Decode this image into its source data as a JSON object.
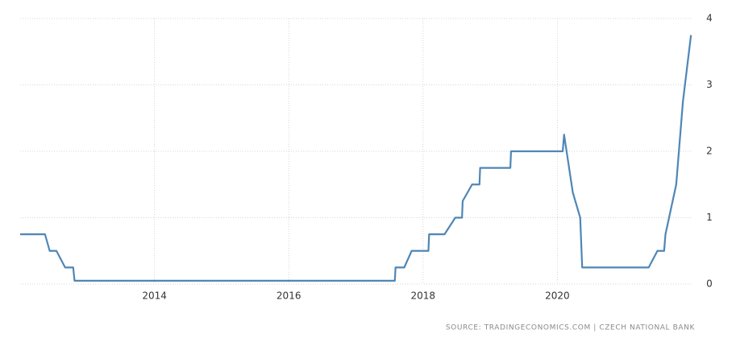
{
  "chart_data": {
    "type": "line",
    "source": "SOURCE: TRADINGECONOMICS.COM | CZECH NATIONAL BANK",
    "x": [
      2012.0,
      2012.37,
      2012.44,
      2012.54,
      2012.67,
      2012.79,
      2012.81,
      2017.58,
      2017.59,
      2017.72,
      2017.83,
      2018.08,
      2018.09,
      2018.32,
      2018.48,
      2018.58,
      2018.59,
      2018.73,
      2018.84,
      2018.85,
      2019.3,
      2019.31,
      2020.08,
      2020.1,
      2020.23,
      2020.34,
      2020.37,
      2021.36,
      2021.49,
      2021.59,
      2021.61,
      2021.77,
      2021.87,
      2021.99
    ],
    "series": [
      {
        "color": "#4f86b5",
        "values": [
          0.75,
          0.75,
          0.5,
          0.5,
          0.25,
          0.25,
          0.05,
          0.05,
          0.25,
          0.25,
          0.5,
          0.5,
          0.75,
          0.75,
          1.0,
          1.0,
          1.25,
          1.5,
          1.5,
          1.75,
          1.75,
          2.0,
          2.0,
          2.25,
          1.38,
          1.0,
          0.25,
          0.25,
          0.5,
          0.5,
          0.75,
          1.5,
          2.75,
          3.75
        ]
      }
    ],
    "xlim": [
      2012.0,
      2022.0
    ],
    "xticks": [
      2014,
      2016,
      2018,
      2020
    ],
    "ylim": [
      0,
      4
    ],
    "yticks": [
      0,
      1,
      2,
      3,
      4
    ],
    "grid": true
  }
}
